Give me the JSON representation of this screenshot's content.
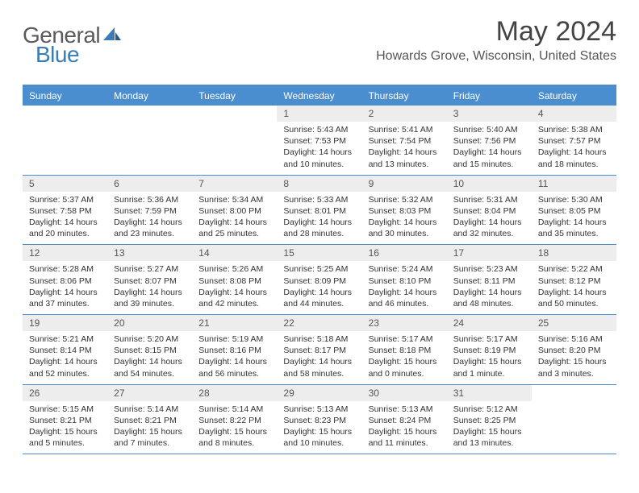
{
  "logo": {
    "general": "General",
    "blue": "Blue"
  },
  "title": "May 2024",
  "location": "Howards Grove, Wisconsin, United States",
  "colors": {
    "header_bg": "#4a8ecf",
    "header_text": "#ffffff",
    "date_bg": "#ededed",
    "border": "#4a8ecf",
    "logo_gray": "#5a5a5a",
    "logo_blue": "#3a7cb8"
  },
  "dayNames": [
    "Sunday",
    "Monday",
    "Tuesday",
    "Wednesday",
    "Thursday",
    "Friday",
    "Saturday"
  ],
  "weeks": [
    [
      {
        "empty": true
      },
      {
        "empty": true
      },
      {
        "empty": true
      },
      {
        "date": "1",
        "sunrise": "5:43 AM",
        "sunset": "7:53 PM",
        "daylight": "14 hours and 10 minutes."
      },
      {
        "date": "2",
        "sunrise": "5:41 AM",
        "sunset": "7:54 PM",
        "daylight": "14 hours and 13 minutes."
      },
      {
        "date": "3",
        "sunrise": "5:40 AM",
        "sunset": "7:56 PM",
        "daylight": "14 hours and 15 minutes."
      },
      {
        "date": "4",
        "sunrise": "5:38 AM",
        "sunset": "7:57 PM",
        "daylight": "14 hours and 18 minutes."
      }
    ],
    [
      {
        "date": "5",
        "sunrise": "5:37 AM",
        "sunset": "7:58 PM",
        "daylight": "14 hours and 20 minutes."
      },
      {
        "date": "6",
        "sunrise": "5:36 AM",
        "sunset": "7:59 PM",
        "daylight": "14 hours and 23 minutes."
      },
      {
        "date": "7",
        "sunrise": "5:34 AM",
        "sunset": "8:00 PM",
        "daylight": "14 hours and 25 minutes."
      },
      {
        "date": "8",
        "sunrise": "5:33 AM",
        "sunset": "8:01 PM",
        "daylight": "14 hours and 28 minutes."
      },
      {
        "date": "9",
        "sunrise": "5:32 AM",
        "sunset": "8:03 PM",
        "daylight": "14 hours and 30 minutes."
      },
      {
        "date": "10",
        "sunrise": "5:31 AM",
        "sunset": "8:04 PM",
        "daylight": "14 hours and 32 minutes."
      },
      {
        "date": "11",
        "sunrise": "5:30 AM",
        "sunset": "8:05 PM",
        "daylight": "14 hours and 35 minutes."
      }
    ],
    [
      {
        "date": "12",
        "sunrise": "5:28 AM",
        "sunset": "8:06 PM",
        "daylight": "14 hours and 37 minutes."
      },
      {
        "date": "13",
        "sunrise": "5:27 AM",
        "sunset": "8:07 PM",
        "daylight": "14 hours and 39 minutes."
      },
      {
        "date": "14",
        "sunrise": "5:26 AM",
        "sunset": "8:08 PM",
        "daylight": "14 hours and 42 minutes."
      },
      {
        "date": "15",
        "sunrise": "5:25 AM",
        "sunset": "8:09 PM",
        "daylight": "14 hours and 44 minutes."
      },
      {
        "date": "16",
        "sunrise": "5:24 AM",
        "sunset": "8:10 PM",
        "daylight": "14 hours and 46 minutes."
      },
      {
        "date": "17",
        "sunrise": "5:23 AM",
        "sunset": "8:11 PM",
        "daylight": "14 hours and 48 minutes."
      },
      {
        "date": "18",
        "sunrise": "5:22 AM",
        "sunset": "8:12 PM",
        "daylight": "14 hours and 50 minutes."
      }
    ],
    [
      {
        "date": "19",
        "sunrise": "5:21 AM",
        "sunset": "8:14 PM",
        "daylight": "14 hours and 52 minutes."
      },
      {
        "date": "20",
        "sunrise": "5:20 AM",
        "sunset": "8:15 PM",
        "daylight": "14 hours and 54 minutes."
      },
      {
        "date": "21",
        "sunrise": "5:19 AM",
        "sunset": "8:16 PM",
        "daylight": "14 hours and 56 minutes."
      },
      {
        "date": "22",
        "sunrise": "5:18 AM",
        "sunset": "8:17 PM",
        "daylight": "14 hours and 58 minutes."
      },
      {
        "date": "23",
        "sunrise": "5:17 AM",
        "sunset": "8:18 PM",
        "daylight": "15 hours and 0 minutes."
      },
      {
        "date": "24",
        "sunrise": "5:17 AM",
        "sunset": "8:19 PM",
        "daylight": "15 hours and 1 minute."
      },
      {
        "date": "25",
        "sunrise": "5:16 AM",
        "sunset": "8:20 PM",
        "daylight": "15 hours and 3 minutes."
      }
    ],
    [
      {
        "date": "26",
        "sunrise": "5:15 AM",
        "sunset": "8:21 PM",
        "daylight": "15 hours and 5 minutes."
      },
      {
        "date": "27",
        "sunrise": "5:14 AM",
        "sunset": "8:21 PM",
        "daylight": "15 hours and 7 minutes."
      },
      {
        "date": "28",
        "sunrise": "5:14 AM",
        "sunset": "8:22 PM",
        "daylight": "15 hours and 8 minutes."
      },
      {
        "date": "29",
        "sunrise": "5:13 AM",
        "sunset": "8:23 PM",
        "daylight": "15 hours and 10 minutes."
      },
      {
        "date": "30",
        "sunrise": "5:13 AM",
        "sunset": "8:24 PM",
        "daylight": "15 hours and 11 minutes."
      },
      {
        "date": "31",
        "sunrise": "5:12 AM",
        "sunset": "8:25 PM",
        "daylight": "15 hours and 13 minutes."
      },
      {
        "empty": true
      }
    ]
  ],
  "labels": {
    "sunrise": "Sunrise:",
    "sunset": "Sunset:",
    "daylight": "Daylight:"
  }
}
